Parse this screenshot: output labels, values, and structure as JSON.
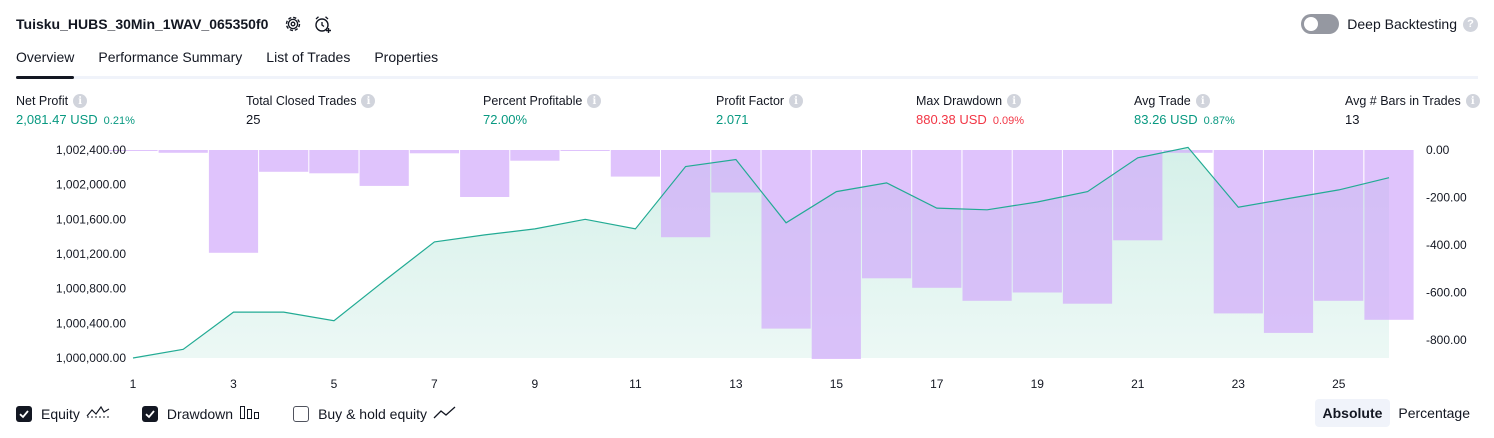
{
  "header": {
    "strategy_title": "Tuisku_HUBS_30Min_1WAV_065350f0",
    "settings_icon": "gear-icon",
    "alert_icon": "alarm-clock-plus-icon",
    "deep_backtesting_label": "Deep Backtesting",
    "deep_backtesting_on": false,
    "help_glyph": "?"
  },
  "tabs": [
    {
      "label": "Overview",
      "active": true
    },
    {
      "label": "Performance Summary",
      "active": false
    },
    {
      "label": "List of Trades",
      "active": false
    },
    {
      "label": "Properties",
      "active": false
    }
  ],
  "metrics": {
    "info_glyph": "i",
    "net_profit": {
      "label": "Net Profit",
      "value": "2,081.47 USD",
      "pct": "0.21%"
    },
    "total_closed_trades": {
      "label": "Total Closed Trades",
      "value": "25"
    },
    "percent_profitable": {
      "label": "Percent Profitable",
      "value": "72.00%"
    },
    "profit_factor": {
      "label": "Profit Factor",
      "value": "2.071"
    },
    "max_drawdown": {
      "label": "Max Drawdown",
      "value": "880.38 USD",
      "pct": "0.09%"
    },
    "avg_trade": {
      "label": "Avg Trade",
      "value": "83.26 USD",
      "pct": "0.87%"
    },
    "avg_bars": {
      "label": "Avg # Bars in Trades",
      "value": "13"
    }
  },
  "colors": {
    "positive": "#089981",
    "negative": "#f23645",
    "equity_line": "#22ab94",
    "equity_fill": "#d5f0e9",
    "drawdown_bar": "#d1a9fb"
  },
  "chart_data": {
    "type": "line",
    "x_ticks": [
      "1",
      "3",
      "5",
      "7",
      "9",
      "11",
      "13",
      "15",
      "17",
      "19",
      "21",
      "23",
      "25"
    ],
    "y_left_ticks": [
      "1,002,400.00",
      "1,002,000.00",
      "1,001,600.00",
      "1,001,200.00",
      "1,000,800.00",
      "1,000,400.00",
      "1,000,000.00"
    ],
    "y_right_ticks": [
      "0.00",
      "-200.00",
      "-400.00",
      "-600.00",
      "-800.00"
    ],
    "y_left_range": [
      1000000,
      1002400
    ],
    "y_right_range": [
      -880,
      0
    ],
    "x_range": [
      1,
      26
    ],
    "series": [
      {
        "name": "Equity",
        "axis": "left",
        "type": "area-line",
        "x": [
          1,
          2,
          3,
          4,
          5,
          6,
          7,
          8,
          9,
          10,
          11,
          12,
          13,
          14,
          15,
          16,
          17,
          18,
          19,
          20,
          21,
          22,
          23,
          24,
          25,
          26
        ],
        "values": [
          1000000,
          1000100,
          1000530,
          1000530,
          1000430,
          1000890,
          1001340,
          1001420,
          1001490,
          1001600,
          1001490,
          1002210,
          1002290,
          1001560,
          1001920,
          1002020,
          1001730,
          1001710,
          1001800,
          1001920,
          1002310,
          1002430,
          1001740,
          1001840,
          1001940,
          1002080
        ]
      },
      {
        "name": "Drawdown",
        "axis": "right",
        "type": "bar",
        "x": [
          1,
          2,
          3,
          4,
          5,
          6,
          7,
          8,
          9,
          10,
          11,
          12,
          13,
          14,
          15,
          16,
          17,
          18,
          19,
          20,
          21,
          22,
          23,
          24,
          25,
          26
        ],
        "values": [
          -3,
          -12,
          -433,
          -92,
          -98,
          -151,
          -14,
          -198,
          -45,
          -3,
          -112,
          -367,
          -179,
          -752,
          -880,
          -540,
          -580,
          -635,
          -600,
          -647,
          -380,
          -12,
          -688,
          -770,
          -635,
          -715
        ]
      }
    ],
    "grid": false,
    "legend": "bottom-left"
  },
  "legend": {
    "equity": {
      "label": "Equity",
      "checked": true,
      "icon": "equity-line-icon"
    },
    "drawdown": {
      "label": "Drawdown",
      "checked": true,
      "icon": "drawdown-bars-icon"
    },
    "buy_hold": {
      "label": "Buy & hold equity",
      "checked": false,
      "icon": "buy-hold-line-icon"
    }
  },
  "mode": {
    "absolute": "Absolute",
    "percentage": "Percentage",
    "selected": "Absolute"
  }
}
